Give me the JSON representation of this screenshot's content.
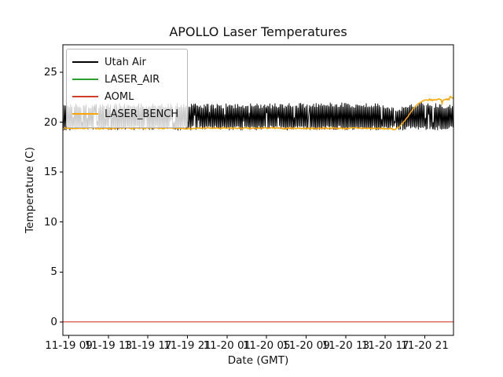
{
  "chart_data": {
    "type": "line",
    "title": "APOLLO Laser Temperatures",
    "xlabel": "Date (GMT)",
    "ylabel": "Temperature (C)",
    "grid": false,
    "legend_position": "upper-left",
    "xlim_hours_from_nov19_00gmt": [
      8.4,
      47.9
    ],
    "ylim": [
      -1.35,
      27.75
    ],
    "x_ticks": {
      "hours": [
        9,
        13,
        17,
        21,
        25,
        29,
        33,
        37,
        41,
        45
      ],
      "labels": [
        "11-19 09",
        "11-19 13",
        "11-19 17",
        "11-19 21",
        "11-20 01",
        "11-20 05",
        "11-20 09",
        "11-20 13",
        "11-20 17",
        "11-20 21"
      ]
    },
    "y_ticks": [
      0,
      5,
      10,
      15,
      20,
      25
    ],
    "series": [
      {
        "name": "Utah Air",
        "color": "#000000",
        "style": "noisy-band",
        "lw": 0.9,
        "seed": 3,
        "description": "dense rapid oscillation between envelope min and max",
        "envelope": [
          [
            8.4,
            19.15,
            21.95
          ],
          [
            10,
            19.2,
            21.9
          ],
          [
            12,
            19.2,
            21.85
          ],
          [
            14,
            19.15,
            21.9
          ],
          [
            16,
            19.2,
            21.9
          ],
          [
            18,
            19.2,
            21.85
          ],
          [
            20,
            19.15,
            21.9
          ],
          [
            22,
            19.2,
            21.9
          ],
          [
            24,
            19.2,
            21.85
          ],
          [
            26,
            19.15,
            21.9
          ],
          [
            28,
            19.2,
            21.9
          ],
          [
            30,
            19.2,
            21.9
          ],
          [
            32,
            19.15,
            21.95
          ],
          [
            34,
            19.2,
            21.95
          ],
          [
            36,
            19.2,
            22.0
          ],
          [
            38,
            19.15,
            21.95
          ],
          [
            40,
            19.2,
            22.0
          ],
          [
            41.5,
            19.25,
            21.6
          ],
          [
            42.3,
            19.2,
            21.45
          ],
          [
            43,
            19.15,
            21.8
          ],
          [
            44,
            19.2,
            22.0
          ],
          [
            45,
            19.2,
            22.05
          ],
          [
            46,
            19.15,
            21.9
          ],
          [
            47,
            19.2,
            21.85
          ],
          [
            47.9,
            19.2,
            21.7
          ]
        ]
      },
      {
        "name": "LASER_AIR",
        "color": "#2ca02c",
        "style": "noisy-line",
        "lw": 1.1,
        "seed": 7,
        "noise_amplitude": 0.07,
        "hidden_behind": "LASER_BENCH",
        "points": [
          [
            8.4,
            19.4
          ],
          [
            9.5,
            19.38
          ],
          [
            11,
            19.42
          ],
          [
            12.5,
            19.36
          ],
          [
            14,
            19.4
          ],
          [
            15.5,
            19.37
          ],
          [
            17,
            19.42
          ],
          [
            18.5,
            19.38
          ],
          [
            20,
            19.4
          ],
          [
            21.5,
            19.36
          ],
          [
            23,
            19.41
          ],
          [
            24.5,
            19.38
          ],
          [
            26,
            19.4
          ],
          [
            27.5,
            19.37
          ],
          [
            29,
            19.42
          ],
          [
            30.5,
            19.38
          ],
          [
            32,
            19.4
          ],
          [
            33.5,
            19.37
          ],
          [
            35,
            19.41
          ],
          [
            36.5,
            19.38
          ],
          [
            38,
            19.4
          ],
          [
            39.5,
            19.38
          ],
          [
            40.8,
            19.36
          ],
          [
            41.6,
            19.32
          ],
          [
            41.9,
            19.28
          ],
          [
            42.3,
            19.45
          ],
          [
            42.7,
            19.8
          ],
          [
            43.1,
            20.3
          ],
          [
            43.5,
            20.9
          ],
          [
            43.9,
            21.4
          ],
          [
            44.3,
            21.8
          ],
          [
            44.7,
            22.05
          ],
          [
            45.1,
            22.2
          ],
          [
            45.5,
            22.25
          ],
          [
            45.9,
            22.2
          ],
          [
            46.3,
            22.3
          ],
          [
            46.65,
            22.3
          ],
          [
            46.75,
            21.85
          ],
          [
            46.9,
            22.3
          ],
          [
            47.2,
            22.3
          ],
          [
            47.45,
            22.3
          ],
          [
            47.6,
            22.6
          ],
          [
            47.75,
            22.35
          ],
          [
            47.9,
            22.45
          ]
        ]
      },
      {
        "name": "AOML",
        "color": "#d43d2a",
        "style": "line",
        "lw": 1.2,
        "points": [
          [
            8.4,
            0
          ],
          [
            47.9,
            0
          ]
        ]
      },
      {
        "name": "LASER_BENCH",
        "color": "#ffa500",
        "style": "noisy-line",
        "lw": 1.5,
        "seed": 7,
        "noise_amplitude": 0.07,
        "points": [
          [
            8.4,
            19.4
          ],
          [
            9.5,
            19.38
          ],
          [
            11,
            19.42
          ],
          [
            12.5,
            19.36
          ],
          [
            14,
            19.4
          ],
          [
            15.5,
            19.37
          ],
          [
            17,
            19.42
          ],
          [
            18.5,
            19.38
          ],
          [
            20,
            19.4
          ],
          [
            21.5,
            19.36
          ],
          [
            23,
            19.41
          ],
          [
            24.5,
            19.38
          ],
          [
            26,
            19.4
          ],
          [
            27.5,
            19.37
          ],
          [
            29,
            19.42
          ],
          [
            30.5,
            19.38
          ],
          [
            32,
            19.4
          ],
          [
            33.5,
            19.37
          ],
          [
            35,
            19.41
          ],
          [
            36.5,
            19.38
          ],
          [
            38,
            19.4
          ],
          [
            39.5,
            19.38
          ],
          [
            40.8,
            19.36
          ],
          [
            41.6,
            19.32
          ],
          [
            41.9,
            19.28
          ],
          [
            42.3,
            19.45
          ],
          [
            42.7,
            19.8
          ],
          [
            43.1,
            20.3
          ],
          [
            43.5,
            20.9
          ],
          [
            43.9,
            21.4
          ],
          [
            44.3,
            21.8
          ],
          [
            44.7,
            22.05
          ],
          [
            45.1,
            22.2
          ],
          [
            45.5,
            22.25
          ],
          [
            45.9,
            22.2
          ],
          [
            46.3,
            22.3
          ],
          [
            46.65,
            22.3
          ],
          [
            46.75,
            21.85
          ],
          [
            46.9,
            22.3
          ],
          [
            47.2,
            22.3
          ],
          [
            47.45,
            22.3
          ],
          [
            47.6,
            22.6
          ],
          [
            47.75,
            22.35
          ],
          [
            47.9,
            22.45
          ]
        ]
      }
    ]
  }
}
